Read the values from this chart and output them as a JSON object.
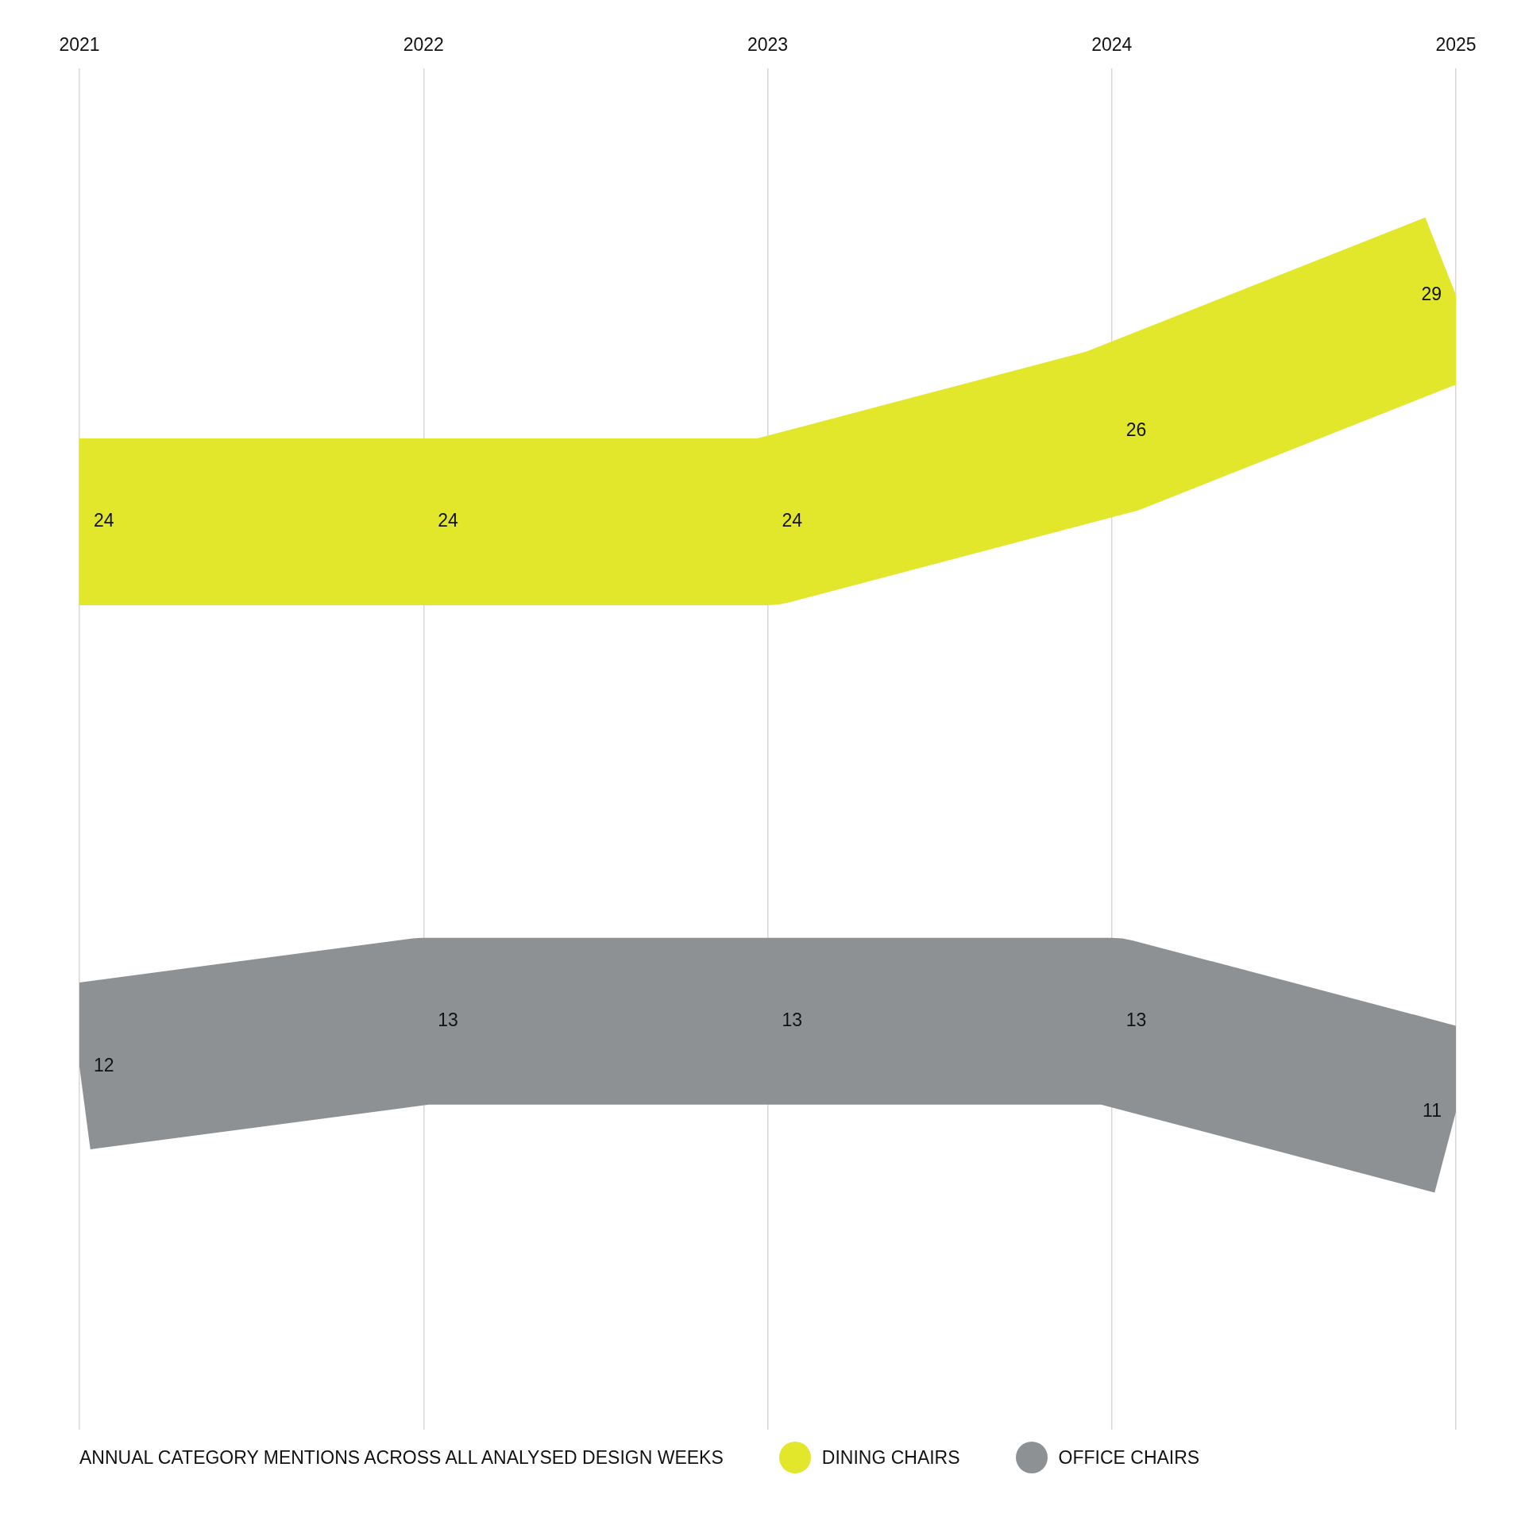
{
  "chart_data": {
    "type": "line",
    "title": "ANNUAL CATEGORY MENTIONS ACROSS ALL ANALYSED DESIGN WEEKS",
    "categories": [
      "2021",
      "2022",
      "2023",
      "2024",
      "2025"
    ],
    "series": [
      {
        "name": "DINING CHAIRS",
        "color": "#e2e72c",
        "values": [
          24,
          24,
          24,
          26,
          29
        ]
      },
      {
        "name": "OFFICE CHAIRS",
        "color": "#8e9194",
        "values": [
          12,
          13,
          13,
          13,
          11
        ]
      }
    ],
    "ylim": [
      4,
      34
    ],
    "grid": "x",
    "legend": "bottom",
    "tick_labels": "x",
    "data_labels": true,
    "marker": "none",
    "line_style": "solid"
  }
}
